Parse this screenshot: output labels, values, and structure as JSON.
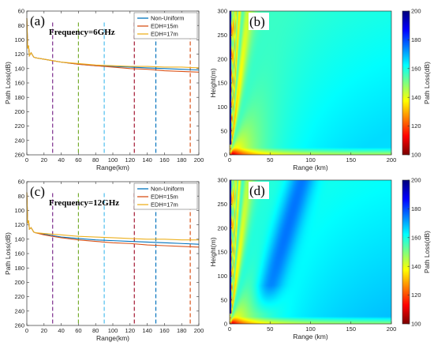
{
  "chart_data": [
    {
      "type": "line",
      "panel_label": "(a)",
      "annotation": "Frequency=6GHz",
      "xlabel": "Range(km)",
      "ylabel": "Path Loss(dB)",
      "xlim": [
        0,
        200
      ],
      "ylim": [
        60,
        260
      ],
      "y_reversed": true,
      "xticks": [
        "0",
        "20",
        "40",
        "60",
        "80",
        "100",
        "120",
        "140",
        "160",
        "180",
        "200"
      ],
      "yticks": [
        "60",
        "80",
        "100",
        "120",
        "140",
        "160",
        "180",
        "200",
        "220",
        "240",
        "260"
      ],
      "legend": [
        "Non-Uniform",
        "EDH=15m",
        "EDH=17m"
      ],
      "legend_position": "top-right",
      "x": [
        0,
        1,
        2,
        3,
        5,
        8,
        10,
        20,
        30,
        40,
        60,
        80,
        100,
        120,
        140,
        160,
        180,
        200
      ],
      "series": [
        {
          "name": "Non-Uniform",
          "color": "#0072BD",
          "values": [
            70,
            112,
            108,
            122,
            118,
            124,
            125,
            127,
            129,
            131,
            134,
            136,
            137,
            138,
            139,
            140,
            141,
            142
          ]
        },
        {
          "name": "EDH=15m",
          "color": "#D95319",
          "values": [
            70,
            112,
            108,
            122,
            118,
            124,
            125,
            127,
            129,
            131,
            134,
            136,
            138,
            140,
            141,
            143,
            144,
            145
          ]
        },
        {
          "name": "EDH=17m",
          "color": "#EDB120",
          "values": [
            70,
            112,
            108,
            122,
            118,
            124,
            125,
            127,
            129,
            131,
            133,
            135,
            136,
            137,
            137,
            138,
            138,
            139
          ]
        }
      ],
      "vlines": [
        {
          "x": 30,
          "color": "#7E2F8E"
        },
        {
          "x": 60,
          "color": "#77AC30"
        },
        {
          "x": 90,
          "color": "#4DBEEE"
        },
        {
          "x": 125,
          "color": "#A2142F"
        },
        {
          "x": 150,
          "color": "#0072BD"
        },
        {
          "x": 190,
          "color": "#D95319"
        }
      ]
    },
    {
      "type": "heatmap",
      "panel_label": "(b)",
      "xlabel": "Range (km)",
      "ylabel": "Height(m)",
      "colorbar_label": "Path Loss(dB)",
      "xlim": [
        0,
        200
      ],
      "ylim": [
        0,
        300
      ],
      "clim": [
        100,
        200
      ],
      "xticks": [
        "0",
        "50",
        "100",
        "150",
        "200"
      ],
      "yticks": [
        "0",
        "50",
        "100",
        "150",
        "200",
        "250",
        "300"
      ],
      "cticks": [
        "100",
        "120",
        "140",
        "160",
        "180",
        "200"
      ],
      "colormap": "jet_reversed"
    },
    {
      "type": "line",
      "panel_label": "(c)",
      "annotation": "Frequency=12GHz",
      "xlabel": "Range(km)",
      "ylabel": "Path Loss(dB)",
      "xlim": [
        0,
        200
      ],
      "ylim": [
        60,
        260
      ],
      "y_reversed": true,
      "xticks": [
        "0",
        "20",
        "40",
        "60",
        "80",
        "100",
        "120",
        "140",
        "160",
        "180",
        "200"
      ],
      "yticks": [
        "60",
        "80",
        "100",
        "120",
        "140",
        "160",
        "180",
        "200",
        "220",
        "240",
        "260"
      ],
      "legend": [
        "Non-Uniform",
        "EDH=15m",
        "EDH=17m"
      ],
      "legend_position": "top-right",
      "x": [
        0,
        1,
        2,
        3,
        5,
        8,
        10,
        20,
        30,
        40,
        60,
        80,
        100,
        120,
        140,
        160,
        180,
        200
      ],
      "series": [
        {
          "name": "Non-Uniform",
          "color": "#0072BD",
          "values": [
            75,
            118,
            114,
            126,
            124,
            130,
            131,
            133,
            135,
            137,
            139,
            141,
            142,
            143,
            144,
            145,
            146,
            147
          ]
        },
        {
          "name": "EDH=15m",
          "color": "#D95319",
          "values": [
            75,
            118,
            114,
            126,
            124,
            130,
            131,
            134,
            136,
            138,
            141,
            143,
            145,
            146,
            148,
            149,
            150,
            151
          ]
        },
        {
          "name": "EDH=17m",
          "color": "#EDB120",
          "values": [
            75,
            118,
            114,
            126,
            124,
            130,
            131,
            132,
            133,
            134,
            136,
            137,
            138,
            139,
            140,
            140,
            141,
            141
          ]
        }
      ],
      "vlines": [
        {
          "x": 30,
          "color": "#7E2F8E"
        },
        {
          "x": 60,
          "color": "#77AC30"
        },
        {
          "x": 90,
          "color": "#4DBEEE"
        },
        {
          "x": 125,
          "color": "#A2142F"
        },
        {
          "x": 150,
          "color": "#0072BD"
        },
        {
          "x": 190,
          "color": "#D95319"
        }
      ]
    },
    {
      "type": "heatmap",
      "panel_label": "(d)",
      "xlabel": "Range (km)",
      "ylabel": "Height(m)",
      "colorbar_label": "Path Loss(dB)",
      "xlim": [
        0,
        200
      ],
      "ylim": [
        0,
        300
      ],
      "clim": [
        100,
        200
      ],
      "xticks": [
        "0",
        "50",
        "100",
        "150",
        "200"
      ],
      "yticks": [
        "0",
        "50",
        "100",
        "150",
        "200",
        "250",
        "300"
      ],
      "cticks": [
        "100",
        "120",
        "140",
        "160",
        "180",
        "200"
      ],
      "colormap": "jet_reversed"
    }
  ]
}
